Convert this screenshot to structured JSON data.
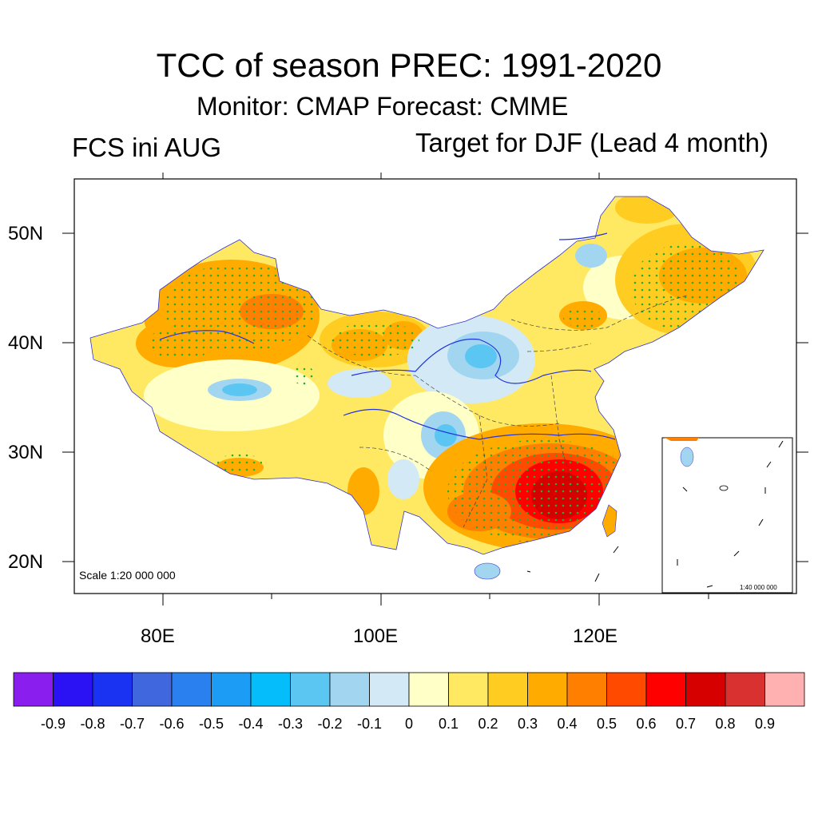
{
  "title": "TCC of season PREC: 1991-2020",
  "subtitle": "Monitor: CMAP   Forecast: CMME",
  "left_label": "FCS ini AUG",
  "right_label": "Target for DJF (Lead 4 month)",
  "map": {
    "lat_labels": [
      "50N",
      "40N",
      "30N",
      "20N"
    ],
    "lon_labels": [
      "80E",
      "100E",
      "120E"
    ],
    "scale_text": "Scale 1:20 000 000",
    "inset_scale_text": "1:40 000 000"
  },
  "colorbar": {
    "labels": [
      "-0.9",
      "-0.8",
      "-0.7",
      "-0.6",
      "-0.5",
      "-0.4",
      "-0.3",
      "-0.2",
      "-0.1",
      "0",
      "0.1",
      "0.2",
      "0.3",
      "0.4",
      "0.5",
      "0.6",
      "0.7",
      "0.8",
      "0.9"
    ],
    "colors": [
      "#8a1eef",
      "#2b12f5",
      "#1a33f2",
      "#4167de",
      "#2a80ef",
      "#1d9cf5",
      "#04bdfa",
      "#5cc6f2",
      "#a2d6f0",
      "#d3e9f6",
      "#ffffc8",
      "#ffe963",
      "#ffcc22",
      "#ffab00",
      "#ff7f00",
      "#ff4a00",
      "#ff0000",
      "#d70000",
      "#d93030",
      "#ffb0b0"
    ]
  }
}
